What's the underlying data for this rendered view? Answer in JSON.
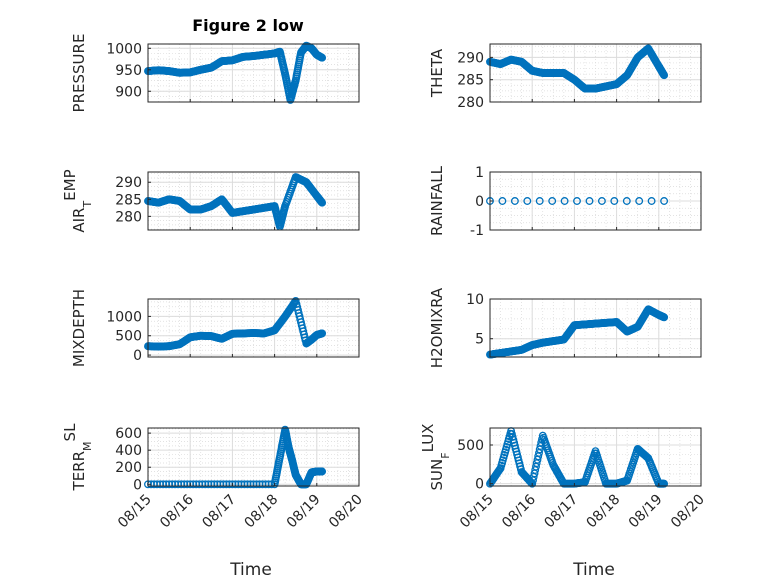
{
  "figure": {
    "title": "Figure 2 low",
    "xlabel": "Time"
  },
  "colors": {
    "marker": "#0072BD",
    "axis": "#262626",
    "grid": "#d9d9d9"
  },
  "chart_data": [
    {
      "type": "scatter",
      "ylabel": "PRESSURE",
      "ylabel_sub": "",
      "ylim": [
        875,
        1010
      ],
      "yticks": [
        900,
        950,
        1000
      ],
      "xlim": [
        "08/15",
        "08/20"
      ],
      "x_dates": [
        "08/15",
        "08/15 06",
        "08/15 12",
        "08/15 18",
        "08/16",
        "08/16 06",
        "08/16 12",
        "08/16 18",
        "08/17",
        "08/17 06",
        "08/17 12",
        "08/17 18",
        "08/18",
        "08/18 03",
        "08/18 06",
        "08/18 09",
        "08/18 12",
        "08/18 15",
        "08/18 18",
        "08/18 21",
        "08/19",
        "08/19 03"
      ],
      "y": [
        947,
        949,
        947,
        943,
        944,
        950,
        955,
        970,
        972,
        980,
        982,
        985,
        988,
        992,
        940,
        880,
        925,
        990,
        1006,
        1000,
        985,
        978
      ]
    },
    {
      "type": "scatter",
      "ylabel": "THETA",
      "ylabel_sub": "",
      "ylim": [
        280,
        293
      ],
      "yticks": [
        280,
        285,
        290
      ],
      "xlim": [
        "08/15",
        "08/20"
      ],
      "x_dates": [
        "08/15",
        "08/15 06",
        "08/15 12",
        "08/15 18",
        "08/16",
        "08/16 06",
        "08/16 12",
        "08/16 18",
        "08/17",
        "08/17 06",
        "08/17 12",
        "08/17 18",
        "08/18",
        "08/18 06",
        "08/18 12",
        "08/18 18",
        "08/19",
        "08/19 03"
      ],
      "y": [
        289,
        288.5,
        289.5,
        289,
        287,
        286.5,
        286.5,
        286.5,
        285,
        283,
        283,
        283.5,
        284,
        286,
        290,
        292,
        288,
        286
      ]
    },
    {
      "type": "scatter",
      "ylabel": "AIR",
      "ylabel_sub": "T",
      "ylabel_rest": "EMP",
      "ylim": [
        276,
        293
      ],
      "yticks": [
        280,
        285,
        290
      ],
      "xlim": [
        "08/15",
        "08/20"
      ],
      "x_dates": [
        "08/15",
        "08/15 06",
        "08/15 12",
        "08/15 18",
        "08/16",
        "08/16 06",
        "08/16 12",
        "08/16 18",
        "08/17",
        "08/17 06",
        "08/17 12",
        "08/17 18",
        "08/18",
        "08/18 03",
        "08/18 06",
        "08/18 12",
        "08/18 18",
        "08/19",
        "08/19 03"
      ],
      "y": [
        284.5,
        284,
        285,
        284.5,
        282,
        282,
        283,
        285,
        281,
        281.5,
        282,
        282.5,
        283,
        277,
        283,
        291.5,
        290,
        286,
        284
      ]
    },
    {
      "type": "scatter",
      "ylabel": "RAINFALL",
      "ylabel_sub": "",
      "ylim": [
        -1,
        1
      ],
      "yticks": [
        -1,
        0,
        1
      ],
      "xlim": [
        "08/15",
        "08/20"
      ],
      "x_dates": [
        "08/15",
        "08/19 03"
      ],
      "y": [
        0,
        0
      ]
    },
    {
      "type": "scatter",
      "ylabel": "MIXDEPTH",
      "ylabel_sub": "",
      "ylim": [
        -50,
        1450
      ],
      "yticks": [
        0,
        500,
        1000
      ],
      "xlim": [
        "08/15",
        "08/20"
      ],
      "x_dates": [
        "08/15",
        "08/15 06",
        "08/15 12",
        "08/15 18",
        "08/16",
        "08/16 06",
        "08/16 12",
        "08/16 18",
        "08/17",
        "08/17 06",
        "08/17 12",
        "08/17 18",
        "08/18",
        "08/18 06",
        "08/18 12",
        "08/18 18",
        "08/18 21",
        "08/19",
        "08/19 03"
      ],
      "y": [
        230,
        220,
        230,
        280,
        460,
        500,
        490,
        420,
        550,
        560,
        570,
        560,
        640,
        1000,
        1400,
        300,
        400,
        520,
        560
      ]
    },
    {
      "type": "scatter",
      "ylabel": "H2OMIXRA",
      "ylabel_sub": "",
      "ylim": [
        2.7,
        10
      ],
      "yticks": [
        5,
        10
      ],
      "xlim": [
        "08/15",
        "08/20"
      ],
      "x_dates": [
        "08/15",
        "08/15 06",
        "08/15 12",
        "08/15 18",
        "08/16",
        "08/16 06",
        "08/16 12",
        "08/16 18",
        "08/17",
        "08/17 06",
        "08/17 12",
        "08/17 18",
        "08/18",
        "08/18 06",
        "08/18 12",
        "08/18 18",
        "08/19",
        "08/19 03"
      ],
      "y": [
        3,
        3.2,
        3.4,
        3.6,
        4.2,
        4.5,
        4.7,
        4.9,
        6.7,
        6.8,
        6.9,
        7,
        7.1,
        5.9,
        6.5,
        8.7,
        8,
        7.7
      ]
    },
    {
      "type": "scatter",
      "ylabel": "TERR",
      "ylabel_sub": "M",
      "ylabel_rest": "SL",
      "ylim": [
        -20,
        660
      ],
      "yticks": [
        0,
        200,
        400,
        600
      ],
      "xlim": [
        "08/15",
        "08/20"
      ],
      "x_dates": [
        "08/15",
        "08/16",
        "08/17",
        "08/18",
        "08/18 03",
        "08/18 06",
        "08/18 08",
        "08/18 10",
        "08/18 12",
        "08/18 15",
        "08/18 18",
        "08/18 21",
        "08/19",
        "08/19 03"
      ],
      "y": [
        0,
        0,
        0,
        0,
        320,
        640,
        430,
        280,
        110,
        0,
        0,
        140,
        150,
        150
      ]
    },
    {
      "type": "scatter",
      "ylabel": "SUN",
      "ylabel_sub": "F",
      "ylabel_rest": "LUX",
      "ylim": [
        -30,
        720
      ],
      "yticks": [
        0,
        500
      ],
      "xlim": [
        "08/15",
        "08/20"
      ],
      "x_dates": [
        "08/15",
        "08/15 06",
        "08/15 12",
        "08/15 18",
        "08/16",
        "08/16 06",
        "08/16 12",
        "08/16 18",
        "08/17",
        "08/17 06",
        "08/17 12",
        "08/17 18",
        "08/18",
        "08/18 06",
        "08/18 12",
        "08/18 18",
        "08/19",
        "08/19 03"
      ],
      "y": [
        0,
        200,
        680,
        150,
        0,
        620,
        240,
        0,
        0,
        20,
        420,
        0,
        0,
        40,
        450,
        330,
        0,
        0
      ]
    }
  ]
}
